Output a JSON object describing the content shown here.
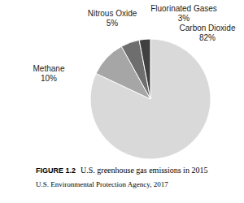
{
  "chart_data": {
    "type": "pie",
    "title": "U.S. greenhouse gas emissions in 2015",
    "figure_label": "FIGURE 1.2",
    "source": "U.S. Environmental Protection Agency, 2017",
    "categories": [
      "Carbon Dioxide",
      "Methane",
      "Nitrous Oxide",
      "Fluorinated Gases"
    ],
    "values": [
      82,
      10,
      5,
      3
    ],
    "value_labels": [
      "82%",
      "10%",
      "5%",
      "3%"
    ],
    "colors": [
      "#d9d9d9",
      "#a6a6a6",
      "#6e6e6e",
      "#404040"
    ],
    "data_labels": true
  }
}
